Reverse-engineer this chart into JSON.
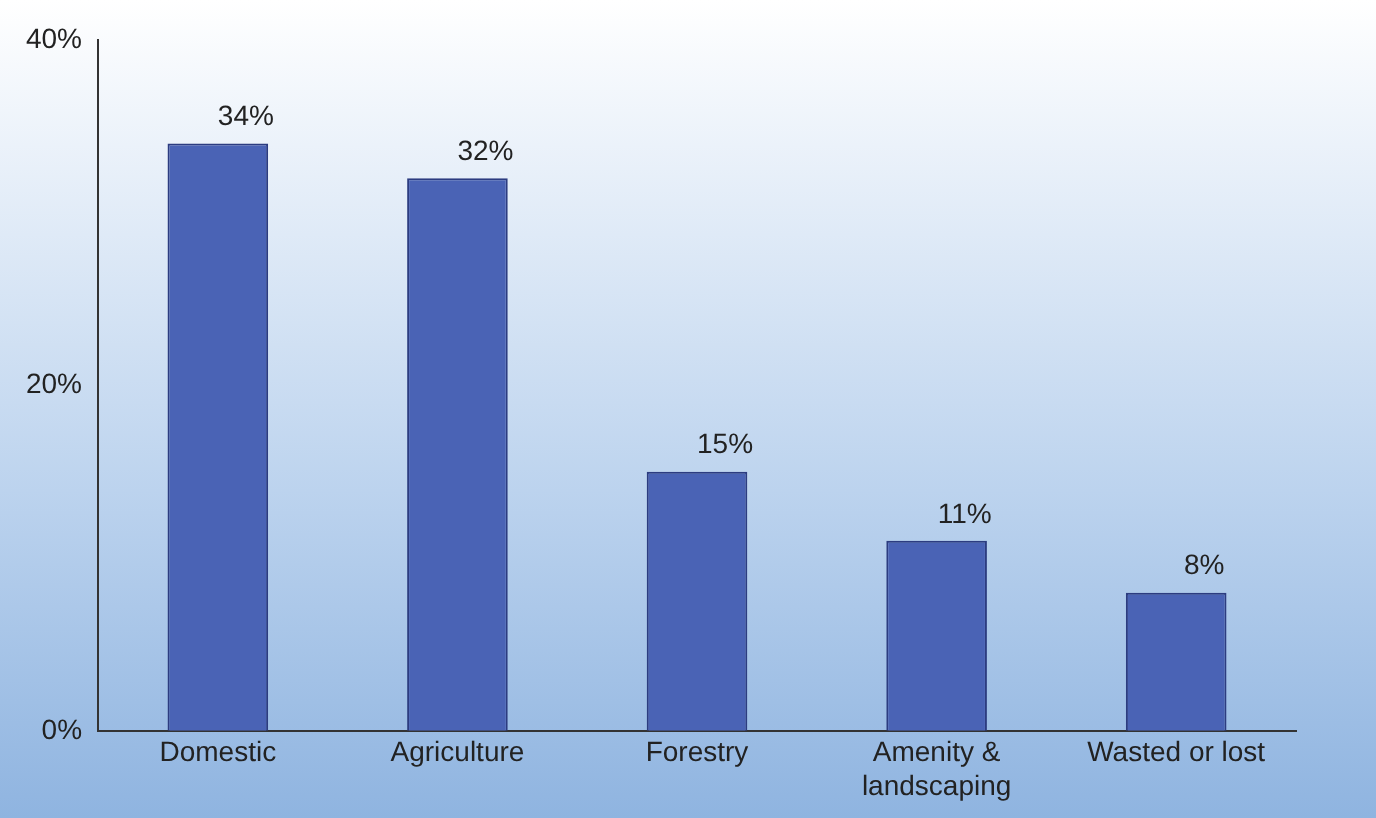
{
  "chart_data": {
    "type": "bar",
    "categories": [
      "Domestic",
      "Agriculture",
      "Forestry",
      "Amenity & landscaping",
      "Wasted or lost"
    ],
    "values": [
      34,
      32,
      15,
      11,
      8
    ],
    "value_labels": [
      "34%",
      "32%",
      "15%",
      "11%",
      "8%"
    ],
    "color": "#4a63b5",
    "ylim": [
      0,
      40
    ],
    "yticks": [
      {
        "value": 0,
        "label": "0%"
      },
      {
        "value": 20,
        "label": "20%"
      },
      {
        "value": 40,
        "label": "40%"
      }
    ],
    "grid": false,
    "legend": false
  }
}
